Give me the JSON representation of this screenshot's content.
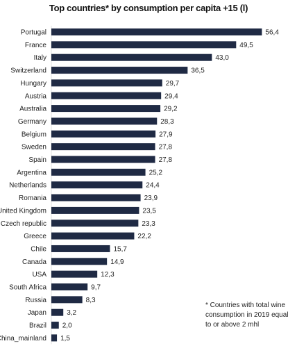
{
  "chart_data": {
    "type": "bar",
    "orientation": "horizontal",
    "title": "Top countries* by consumption per capita +15 (l)",
    "categories": [
      "Portugal",
      "France",
      "Italy",
      "Switzerland",
      "Hungary",
      "Austria",
      "Australia",
      "Germany",
      "Belgium",
      "Sweden",
      "Spain",
      "Argentina",
      "Netherlands",
      "Romania",
      "United Kingdom",
      "Czech republic",
      "Greece",
      "Chile",
      "Canada",
      "USA",
      "South Africa",
      "Russia",
      "Japan",
      "Brazil",
      "China_mainland"
    ],
    "values": [
      56.4,
      49.5,
      43.0,
      36.5,
      29.7,
      29.4,
      29.2,
      28.3,
      27.9,
      27.8,
      27.8,
      25.2,
      24.4,
      23.9,
      23.5,
      23.3,
      22.2,
      15.7,
      14.9,
      12.3,
      9.7,
      8.3,
      3.2,
      2.0,
      1.5
    ],
    "value_labels": [
      "56,4",
      "49,5",
      "43,0",
      "36,5",
      "29,7",
      "29,4",
      "29,2",
      "28,3",
      "27,9",
      "27,8",
      "27,8",
      "25,2",
      "24,4",
      "23,9",
      "23,5",
      "23,3",
      "22,2",
      "15,7",
      "14,9",
      "12,3",
      "9,7",
      "8,3",
      "3,2",
      "2,0",
      "1,5"
    ],
    "bar_color": "#1f2a44",
    "grid": false,
    "legend": "none",
    "footnote": "* Countries with total wine consumption in 2019 equal to or above 2 mhl"
  }
}
